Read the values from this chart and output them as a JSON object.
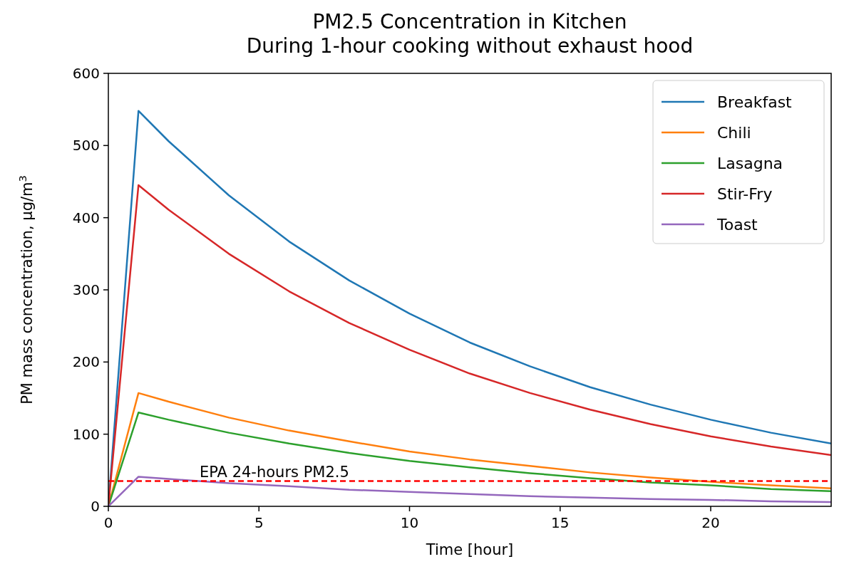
{
  "chart_data": {
    "type": "line",
    "title": "PM2.5 Concentration in Kitchen\nDuring 1-hour cooking without exhaust hood",
    "xlabel": "Time [hour]",
    "ylabel": "PM mass concentration, μg/m$^{3}$",
    "x": [
      0,
      1,
      2,
      4,
      6,
      8,
      10,
      12,
      14,
      16,
      18,
      20,
      22,
      24
    ],
    "series": [
      {
        "name": "Breakfast",
        "color": "#1f77b4",
        "values": [
          0,
          548,
          506,
          431,
          367,
          313,
          267,
          227,
          194,
          165,
          141,
          120,
          102,
          87
        ]
      },
      {
        "name": "Chili",
        "color": "#ff7f0e",
        "values": [
          0,
          157,
          145,
          123,
          105,
          90,
          76,
          65,
          56,
          47,
          40,
          34,
          29,
          25
        ]
      },
      {
        "name": "Lasagna",
        "color": "#2ca02c",
        "values": [
          0,
          130,
          120,
          102,
          87,
          74,
          63,
          54,
          46,
          39,
          33,
          29,
          24,
          21
        ]
      },
      {
        "name": "Stir-Fry",
        "color": "#d62728",
        "values": [
          0,
          445,
          411,
          350,
          298,
          254,
          217,
          184,
          157,
          134,
          114,
          97,
          83,
          71
        ]
      },
      {
        "name": "Toast",
        "color": "#9467bd",
        "values": [
          0,
          41,
          38,
          32,
          28,
          23,
          20,
          17,
          14,
          12,
          10,
          9,
          7,
          6
        ]
      }
    ],
    "xlim": [
      0,
      24
    ],
    "xticks": [
      0,
      5,
      10,
      15,
      20
    ],
    "ylim": [
      0,
      600
    ],
    "yticks": [
      0,
      100,
      200,
      300,
      400,
      500,
      600
    ],
    "ref_lines": [
      {
        "axis": "y",
        "value": 35,
        "label": "EPA 24-hours PM2.5",
        "color": "#ff0000",
        "line_style": "dashed"
      }
    ],
    "legend": "top right",
    "line_style": "solid"
  }
}
